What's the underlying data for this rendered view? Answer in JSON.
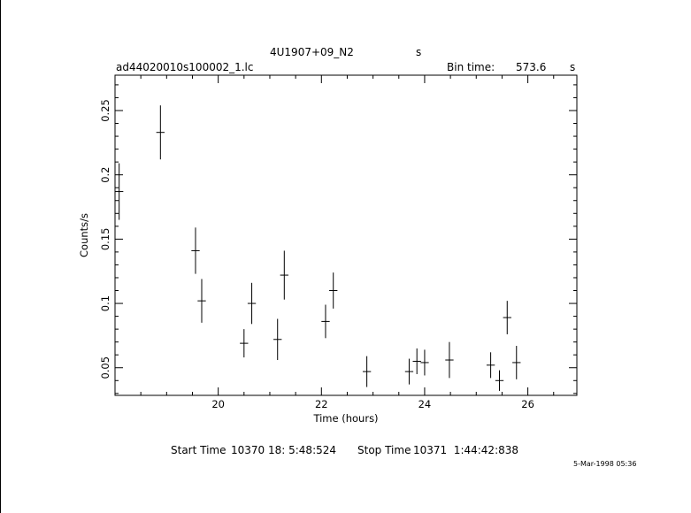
{
  "header": {
    "object": "4U1907+09_N2",
    "object_unit": "s",
    "filename": "ad44020010s100002_1.lc",
    "bin_time_label": "Bin time:",
    "bin_time_value": "573.6",
    "bin_time_unit": "s"
  },
  "footer": {
    "start_label": "Start Time",
    "start_value": "10370 18: 5:48:524",
    "stop_label": "Stop Time",
    "stop_value": "10371  1:44:42:838",
    "date_stamp": "5-Mar-1998 05:36"
  },
  "chart_data": {
    "type": "scatter",
    "title": "4U1907+09_N2",
    "xlabel": "Time (hours)",
    "ylabel": "Counts/s",
    "xlim": [
      18.0,
      26.95
    ],
    "ylim": [
      0.0285,
      0.2775
    ],
    "x_ticks": [
      20,
      22,
      24,
      26
    ],
    "y_ticks": [
      0.05,
      0.1,
      0.15,
      0.2,
      0.25
    ],
    "y_tick_labels": [
      "0.05",
      "0.1",
      "0.15",
      "0.2",
      "0.25"
    ],
    "grid": false,
    "points": [
      {
        "x": 18.08,
        "y": 0.187,
        "xerr": 0.08,
        "yerr": 0.022
      },
      {
        "x": 18.88,
        "y": 0.233,
        "xerr": 0.08,
        "yerr": 0.021
      },
      {
        "x": 19.56,
        "y": 0.141,
        "xerr": 0.08,
        "yerr": 0.018
      },
      {
        "x": 19.68,
        "y": 0.102,
        "xerr": 0.08,
        "yerr": 0.017
      },
      {
        "x": 20.5,
        "y": 0.069,
        "xerr": 0.08,
        "yerr": 0.011
      },
      {
        "x": 20.65,
        "y": 0.1,
        "xerr": 0.08,
        "yerr": 0.016
      },
      {
        "x": 21.15,
        "y": 0.072,
        "xerr": 0.08,
        "yerr": 0.016
      },
      {
        "x": 21.28,
        "y": 0.122,
        "xerr": 0.08,
        "yerr": 0.019
      },
      {
        "x": 22.08,
        "y": 0.086,
        "xerr": 0.08,
        "yerr": 0.013
      },
      {
        "x": 22.23,
        "y": 0.11,
        "xerr": 0.08,
        "yerr": 0.014
      },
      {
        "x": 22.88,
        "y": 0.047,
        "xerr": 0.08,
        "yerr": 0.012
      },
      {
        "x": 23.7,
        "y": 0.047,
        "xerr": 0.08,
        "yerr": 0.01
      },
      {
        "x": 23.85,
        "y": 0.055,
        "xerr": 0.08,
        "yerr": 0.01
      },
      {
        "x": 24.0,
        "y": 0.054,
        "xerr": 0.08,
        "yerr": 0.01
      },
      {
        "x": 24.48,
        "y": 0.056,
        "xerr": 0.08,
        "yerr": 0.014
      },
      {
        "x": 25.28,
        "y": 0.052,
        "xerr": 0.08,
        "yerr": 0.01
      },
      {
        "x": 25.45,
        "y": 0.04,
        "xerr": 0.08,
        "yerr": 0.008
      },
      {
        "x": 25.6,
        "y": 0.089,
        "xerr": 0.08,
        "yerr": 0.013
      },
      {
        "x": 25.78,
        "y": 0.054,
        "xerr": 0.08,
        "yerr": 0.013
      }
    ]
  }
}
